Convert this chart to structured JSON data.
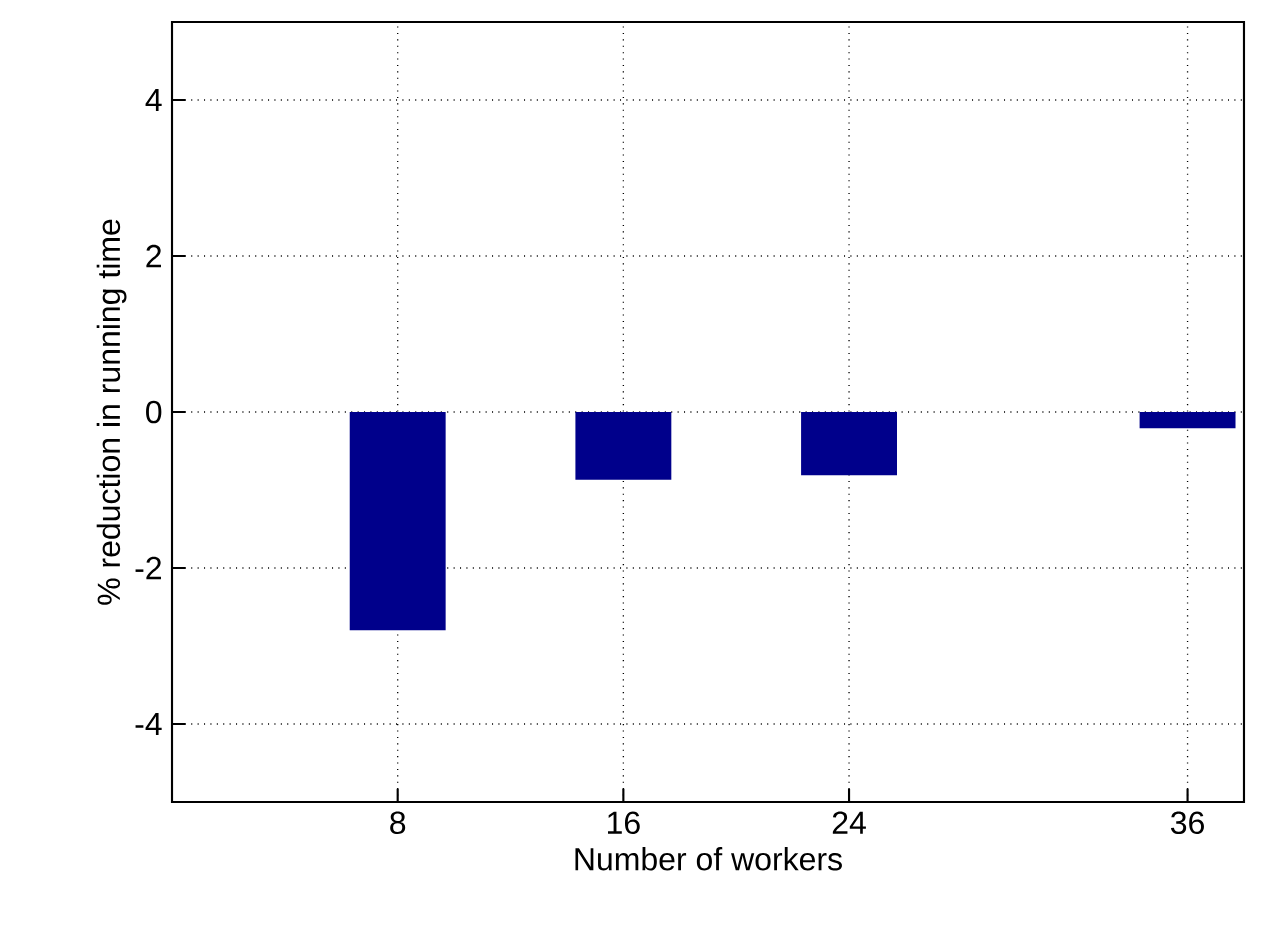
{
  "chart_data": {
    "type": "bar",
    "xlabel": "Number of workers",
    "ylabel": "% reduction in running time",
    "x": [
      8,
      16,
      24,
      36
    ],
    "values": [
      -2.8,
      -0.87,
      -0.81,
      -0.21
    ],
    "color": "#00008b",
    "xlim": [
      0,
      38
    ],
    "xticks": [
      8,
      16,
      24,
      36
    ],
    "ylim": [
      -5,
      5
    ],
    "yticks": [
      -4,
      -2,
      0,
      2,
      4
    ],
    "grid": true
  }
}
